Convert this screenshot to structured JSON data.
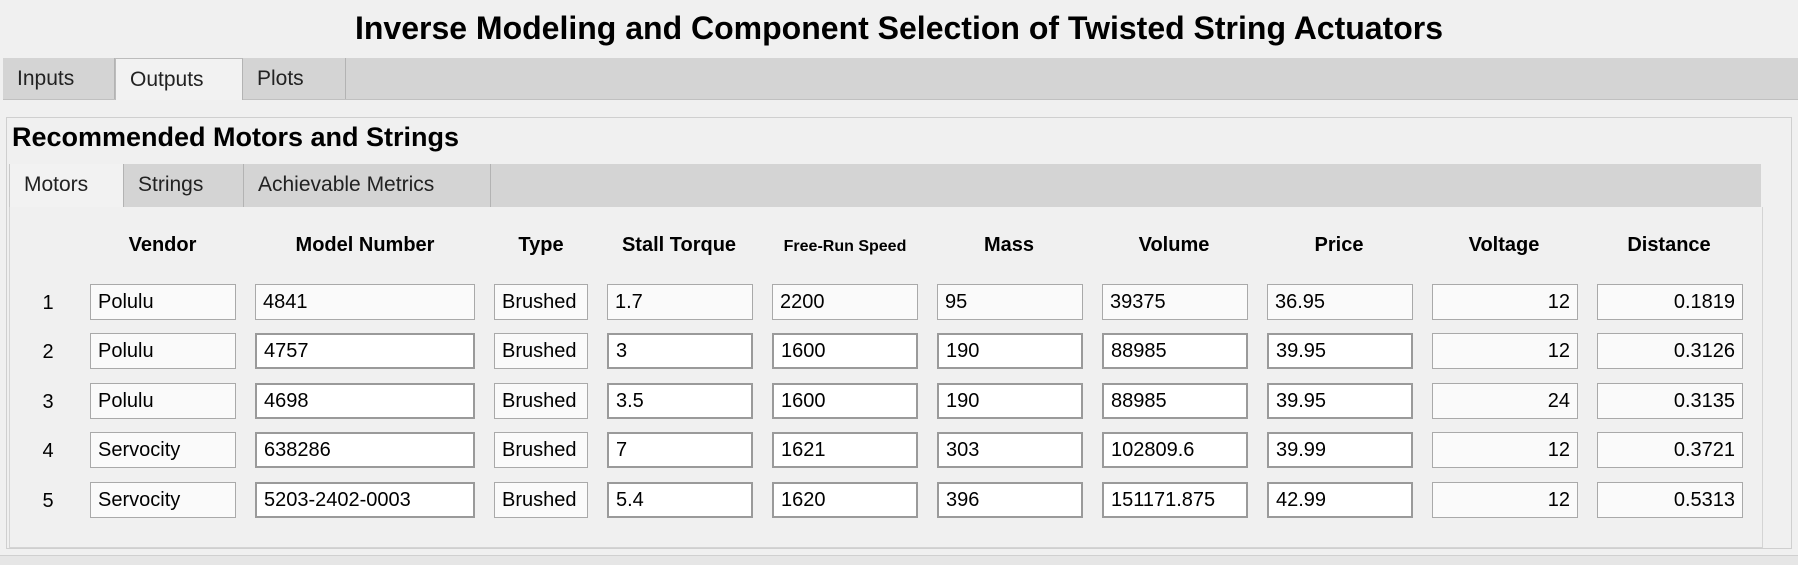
{
  "app": {
    "title": "Inverse Modeling and Component Selection of Twisted String Actuators"
  },
  "main_tabs": [
    {
      "label": "Inputs",
      "active": false
    },
    {
      "label": "Outputs",
      "active": true
    },
    {
      "label": "Plots",
      "active": false
    }
  ],
  "panel": {
    "title": "Recommended Motors and Strings"
  },
  "sub_tabs": [
    {
      "label": "Motors",
      "active": true
    },
    {
      "label": "Strings",
      "active": false
    },
    {
      "label": "Achievable Metrics",
      "active": false
    }
  ],
  "table": {
    "headers": {
      "vendor": "Vendor",
      "model": "Model Number",
      "type": "Type",
      "stall_torque": "Stall Torque",
      "free_run_speed": "Free-Run Speed",
      "mass": "Mass",
      "volume": "Volume",
      "price": "Price",
      "voltage": "Voltage",
      "distance": "Distance"
    },
    "rows": [
      {
        "index": "1",
        "vendor": "Polulu",
        "model": "4841",
        "type": "Brushed",
        "stall_torque": "1.7",
        "free_run_speed": "2200",
        "mass": "95",
        "volume": "39375",
        "price": "36.95",
        "voltage": "12",
        "distance": "0.1819"
      },
      {
        "index": "2",
        "vendor": "Polulu",
        "model": "4757",
        "type": "Brushed",
        "stall_torque": "3",
        "free_run_speed": "1600",
        "mass": "190",
        "volume": "88985",
        "price": "39.95",
        "voltage": "12",
        "distance": "0.3126"
      },
      {
        "index": "3",
        "vendor": "Polulu",
        "model": "4698",
        "type": "Brushed",
        "stall_torque": "3.5",
        "free_run_speed": "1600",
        "mass": "190",
        "volume": "88985",
        "price": "39.95",
        "voltage": "24",
        "distance": "0.3135"
      },
      {
        "index": "4",
        "vendor": "Servocity",
        "model": "638286",
        "type": "Brushed",
        "stall_torque": "7",
        "free_run_speed": "1621",
        "mass": "303",
        "volume": "102809.6",
        "price": "39.99",
        "voltage": "12",
        "distance": "0.3721"
      },
      {
        "index": "5",
        "vendor": "Servocity",
        "model": "5203-2402-0003",
        "type": "Brushed",
        "stall_torque": "5.4",
        "free_run_speed": "1620",
        "mass": "396",
        "volume": "151171.875",
        "price": "42.99",
        "voltage": "12",
        "distance": "0.5313"
      }
    ]
  }
}
